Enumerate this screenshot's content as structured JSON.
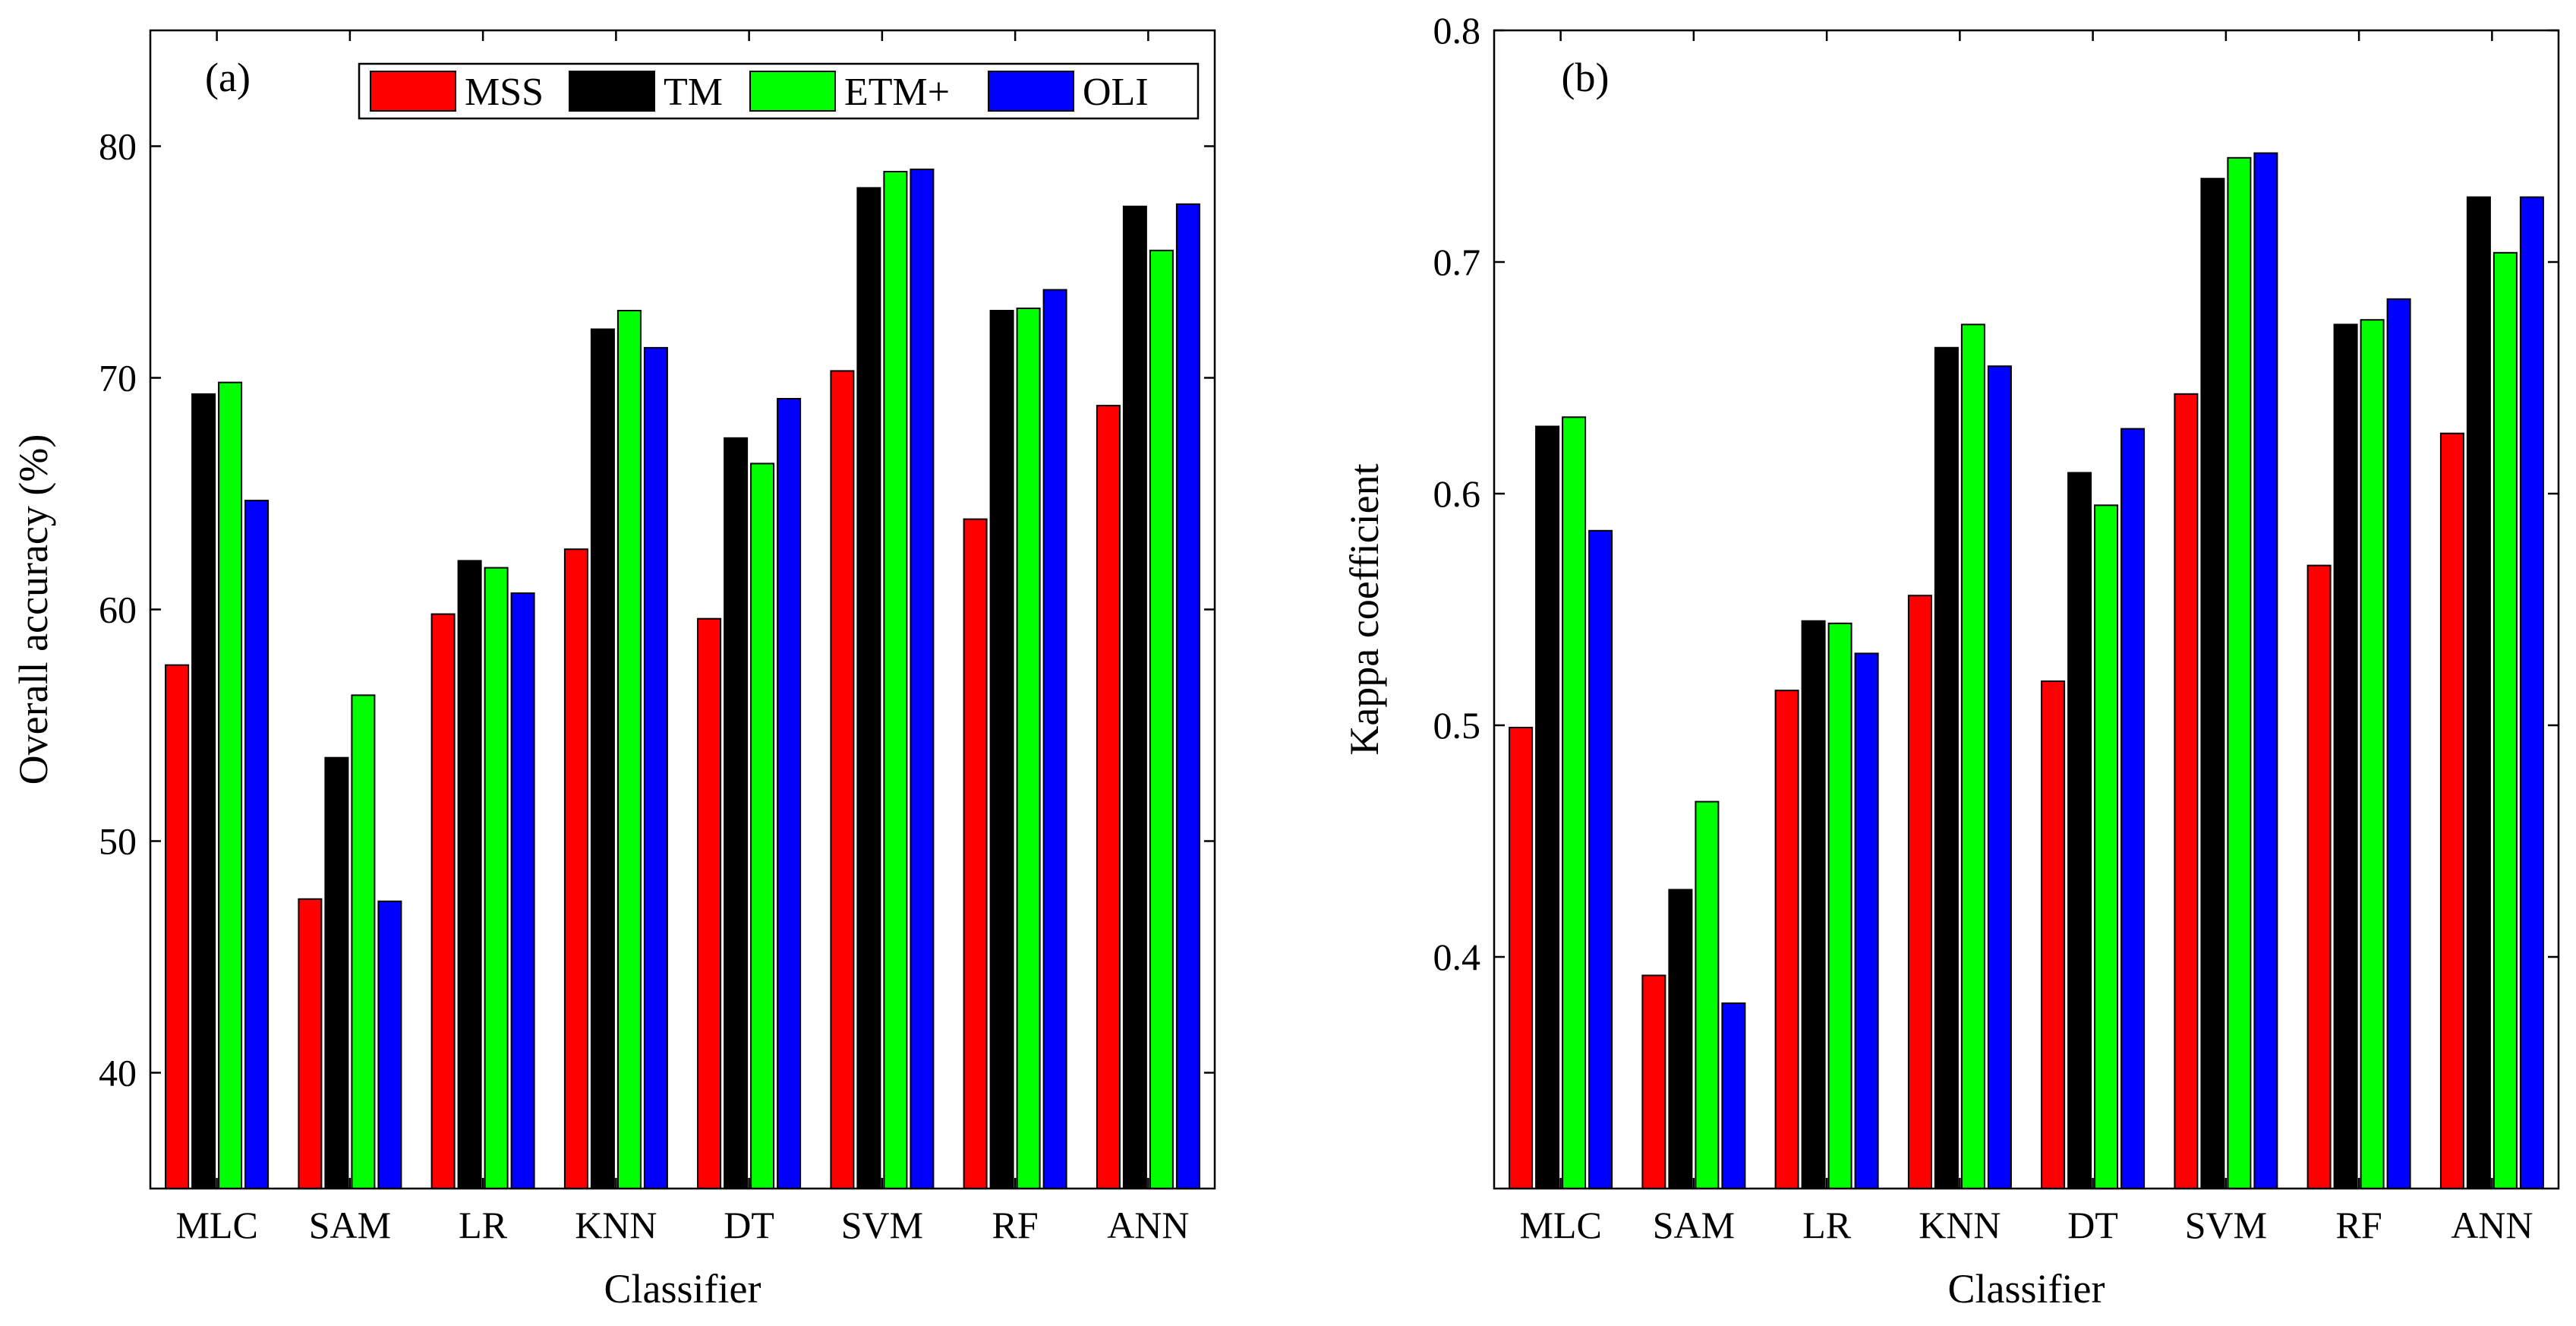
{
  "legend": {
    "items": [
      {
        "name": "MSS",
        "color": "#ff0000"
      },
      {
        "name": "TM",
        "color": "#000000"
      },
      {
        "name": "ETM+",
        "color": "#00ff00"
      },
      {
        "name": "OLI",
        "color": "#0000ff"
      }
    ],
    "placement": "top-right of panel (a)"
  },
  "chart_data": [
    {
      "type": "bar",
      "panel_label": "(a)",
      "xlabel": "Classifier",
      "ylabel": "Overall accuracy (%)",
      "ylim": [
        35,
        85
      ],
      "yticks": [
        "40",
        "50",
        "60",
        "70",
        "80"
      ],
      "grid": false,
      "categories": [
        "MLC",
        "SAM",
        "LR",
        "KNN",
        "DT",
        "SVM",
        "RF",
        "ANN"
      ],
      "series": [
        {
          "name": "MSS",
          "color": "#ff0000",
          "values": [
            57.6,
            47.5,
            59.8,
            62.6,
            59.6,
            70.3,
            63.9,
            68.8
          ]
        },
        {
          "name": "TM",
          "color": "#000000",
          "values": [
            69.3,
            53.6,
            62.1,
            72.1,
            67.4,
            78.2,
            72.9,
            77.4
          ]
        },
        {
          "name": "ETM+",
          "color": "#00ff00",
          "values": [
            69.8,
            56.3,
            61.8,
            72.9,
            66.3,
            78.9,
            73.0,
            75.5
          ]
        },
        {
          "name": "OLI",
          "color": "#0000ff",
          "values": [
            64.7,
            47.4,
            60.7,
            71.3,
            69.1,
            79.0,
            73.8,
            77.5
          ]
        }
      ]
    },
    {
      "type": "bar",
      "panel_label": "(b)",
      "xlabel": "Classifier",
      "ylabel": "Kappa coefficient",
      "ylim": [
        0.3,
        0.8
      ],
      "yticks": [
        "0.4",
        "0.5",
        "0.6",
        "0.7",
        "0.8"
      ],
      "grid": false,
      "categories": [
        "MLC",
        "SAM",
        "LR",
        "KNN",
        "DT",
        "SVM",
        "RF",
        "ANN"
      ],
      "series": [
        {
          "name": "MSS",
          "color": "#ff0000",
          "values": [
            0.499,
            0.392,
            0.515,
            0.556,
            0.519,
            0.643,
            0.569,
            0.626
          ]
        },
        {
          "name": "TM",
          "color": "#000000",
          "values": [
            0.629,
            0.429,
            0.545,
            0.663,
            0.609,
            0.736,
            0.673,
            0.728
          ]
        },
        {
          "name": "ETM+",
          "color": "#00ff00",
          "values": [
            0.633,
            0.467,
            0.544,
            0.673,
            0.595,
            0.745,
            0.675,
            0.704
          ]
        },
        {
          "name": "OLI",
          "color": "#0000ff",
          "values": [
            0.584,
            0.38,
            0.531,
            0.655,
            0.628,
            0.747,
            0.684,
            0.728
          ]
        }
      ]
    }
  ]
}
